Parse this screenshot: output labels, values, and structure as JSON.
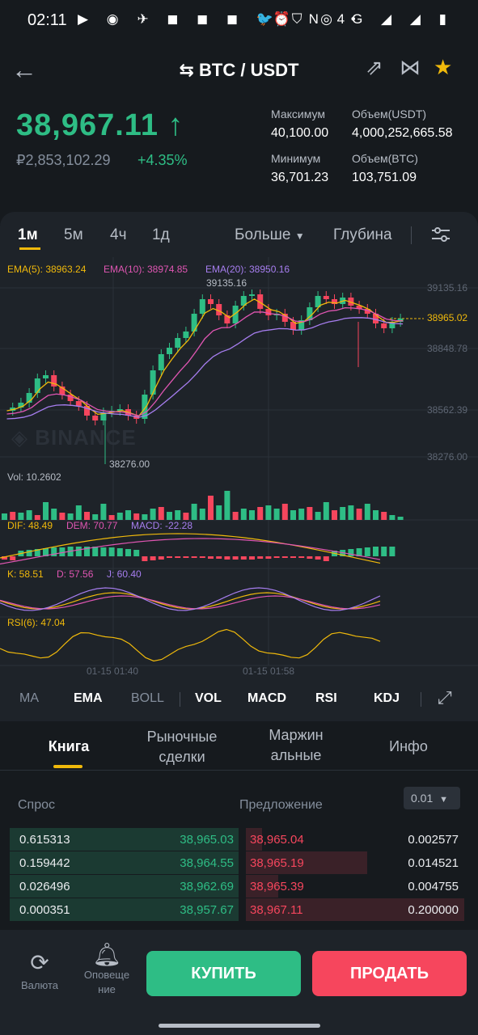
{
  "status": {
    "time": "02:11",
    "left_icons": "▶ ◉ ✈ ◼ ◼ ◼ 🐦 ⛉ ◎ •",
    "right_icons": "⏰ N 4G ◢ ◢ ▮"
  },
  "header": {
    "pair": "⇆ BTC / USDT",
    "back_icon": "←",
    "share_icon": "⇗",
    "compare_icon": "⋈",
    "star_icon": "★"
  },
  "ticker": {
    "price": "38,967.11",
    "arrow": "↑",
    "rub": "₽2,853,102.29",
    "change": "+4.35%",
    "high_label": "Максимум",
    "high": "40,100.00",
    "low_label": "Минимум",
    "low": "36,701.23",
    "vol_usdt_label": "Объем(USDT)",
    "vol_usdt": "4,000,252,665.58",
    "vol_btc_label": "Объем(BTC)",
    "vol_btc": "103,751.09"
  },
  "timeframes": {
    "t1": "1м",
    "t2": "5м",
    "t3": "4ч",
    "t4": "1д",
    "more": "Больше",
    "depth": "Глубина"
  },
  "chart_data": {
    "type": "candlestick",
    "ema5": "EMA(5): 38963.24",
    "ema10": "EMA(10): 38974.85",
    "ema20": "EMA(20): 38950.16",
    "y_ticks": [
      "39135.16",
      "38848.78",
      "38562.39",
      "38276.00"
    ],
    "current": "38965.02",
    "high_mark": "39135.16",
    "low_mark": "38276.00",
    "watermark": "BINANCE",
    "vol": "Vol: 10.2602",
    "dif": "DIF: 48.49",
    "dem": "DEM: 70.77",
    "macd": "MACD: -22.28",
    "k": "K: 58.51",
    "d": "D: 57.56",
    "j": "J: 60.40",
    "rsi": "RSI(6): 47.04",
    "time1": "01-15 01:40",
    "time2": "01-15 01:58"
  },
  "indicators": {
    "ma": "MA",
    "ema": "EMA",
    "boll": "BOLL",
    "vol": "VOL",
    "macd": "MACD",
    "rsi": "RSI",
    "kdj": "KDJ"
  },
  "tabs": {
    "book": "Книга",
    "trades_1": "Рыночные",
    "trades_2": "сделки",
    "margin_1": "Маржин",
    "margin_2": "альные",
    "info": "Инфо"
  },
  "orderbook": {
    "bid_label": "Спрос",
    "ask_label": "Предложение",
    "precision": "0.01",
    "rows": [
      {
        "bq": "0.615313",
        "bp": "38,965.03",
        "ap": "38,965.04",
        "aq": "0.002577"
      },
      {
        "bq": "0.159442",
        "bp": "38,964.55",
        "ap": "38,965.19",
        "aq": "0.014521"
      },
      {
        "bq": "0.026496",
        "bp": "38,962.69",
        "ap": "38,965.39",
        "aq": "0.004755"
      },
      {
        "bq": "0.000351",
        "bp": "38,957.67",
        "ap": "38,967.11",
        "aq": "0.200000"
      }
    ]
  },
  "bottom": {
    "currency": "Валюта",
    "alerts_1": "Оповеще",
    "alerts_2": "ние",
    "buy": "КУПИТЬ",
    "sell": "ПРОДАТЬ"
  }
}
